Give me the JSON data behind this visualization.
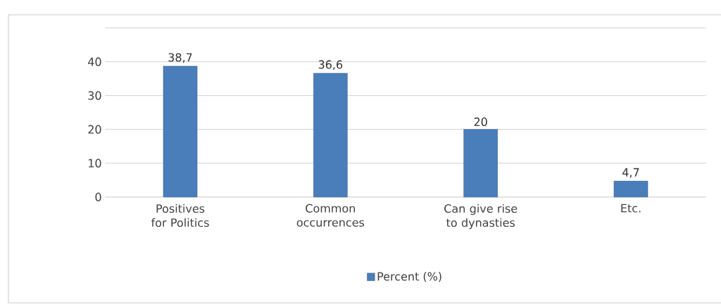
{
  "chart_data": {
    "type": "bar",
    "categories": [
      "Positives for Politics",
      "Common occurrences",
      "Can give rise to dynasties",
      "Etc."
    ],
    "series": [
      {
        "name": "Percent (%)",
        "color": "#4a7ebb",
        "values": [
          38.7,
          36.6,
          20,
          4.7
        ],
        "value_labels": [
          "38,7",
          "36,6",
          "20",
          "4,7"
        ]
      }
    ],
    "ylim": [
      0,
      50
    ],
    "yticks": [
      0,
      10,
      20,
      30,
      40,
      {
        "value": 50,
        "label": null
      }
    ],
    "grid": "y",
    "legend": "bottom"
  }
}
